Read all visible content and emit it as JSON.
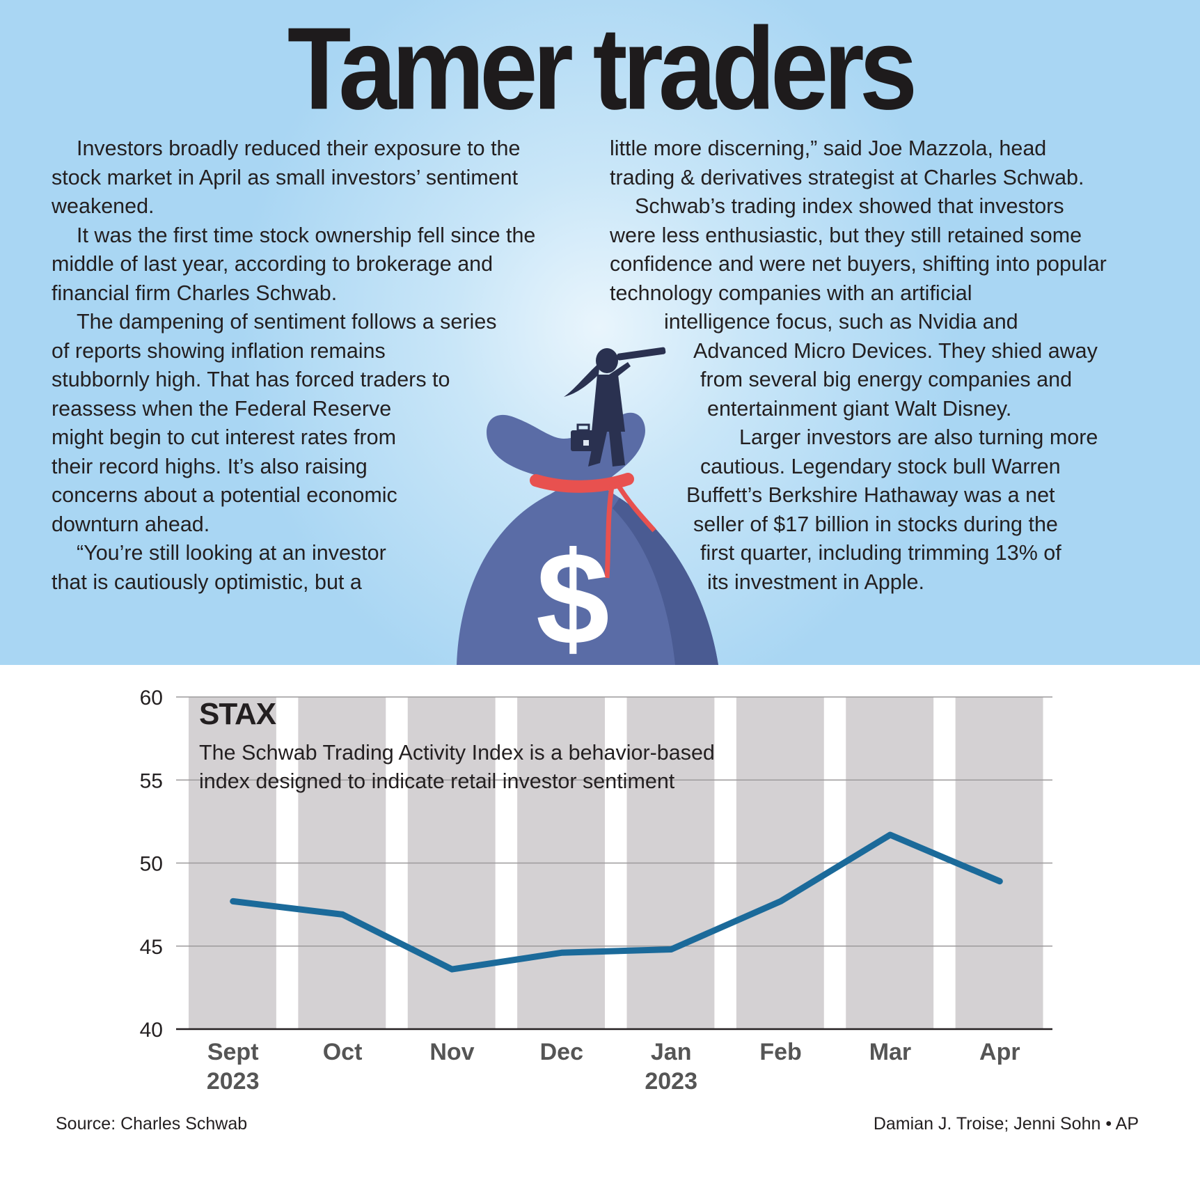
{
  "title": "Tamer traders",
  "article": {
    "left": [
      {
        "indent": true,
        "lines": [
          "Investors broadly reduced their exposure to the",
          "stock market in April as small investors’ sentiment",
          "weakened."
        ]
      },
      {
        "indent": true,
        "lines": [
          "It was the first time stock ownership fell since the",
          "middle of last year, according to brokerage and",
          "financial firm Charles Schwab."
        ]
      },
      {
        "indent": true,
        "lines": [
          "The dampening of sentiment follows a series",
          "of reports showing inflation remains",
          "stubbornly high. That has forced traders to",
          "reassess when the Federal Reserve",
          "might begin to cut interest rates from",
          "their record highs. It’s also raising",
          "concerns about a potential economic",
          "downturn ahead."
        ]
      },
      {
        "indent": true,
        "lines": [
          "“You’re still looking at an investor",
          "that is cautiously optimistic, but a"
        ]
      }
    ],
    "right": [
      {
        "indent": false,
        "lines": [
          "little more discerning,” said Joe Mazzola, head",
          "trading & derivatives strategist at Charles Schwab."
        ]
      },
      {
        "indent": true,
        "lines": [
          "Schwab’s trading index showed that investors",
          "were less enthusiastic, but they still retained some",
          "confidence and were net buyers, shifting into popular",
          "technology companies with an artificial",
          "intelligence focus, such as Nvidia and",
          "Advanced Micro Devices. They shied away",
          "from several big energy companies and",
          "entertainment giant Walt Disney."
        ]
      },
      {
        "indent": true,
        "lines": [
          "Larger investors are also turning more",
          "cautious. Legendary stock bull Warren",
          "Buffett’s Berkshire Hathaway was a net",
          "seller of $17 billion in stocks during the",
          "first quarter, including trimming 13% of",
          "its investment in Apple."
        ]
      }
    ]
  },
  "illustration": {
    "bag_symbol": "$",
    "bag_color": "#5a6ca6",
    "tie_color": "#e8514f"
  },
  "chart_data": {
    "type": "line",
    "title": "STAX",
    "subtitle": [
      "The Schwab Trading Activity Index is a behavior-based",
      "index designed to indicate retail investor sentiment"
    ],
    "categories": [
      [
        "Sept",
        "2023"
      ],
      [
        "Oct"
      ],
      [
        "Nov"
      ],
      [
        "Dec"
      ],
      [
        "Jan",
        "2023"
      ],
      [
        "Feb"
      ],
      [
        "Mar"
      ],
      [
        "Apr"
      ]
    ],
    "values": [
      47.7,
      46.9,
      43.6,
      44.6,
      44.8,
      47.7,
      51.7,
      48.9
    ],
    "ylim": [
      40,
      60
    ],
    "yticks": [
      40,
      45,
      50,
      55,
      60
    ],
    "grid": true,
    "line_color": "#1b6a9a",
    "band_color": "#d4d1d3"
  },
  "footer": {
    "source": "Source: Charles Schwab",
    "credit": "Damian J. Troise; Jenni Sohn • AP"
  }
}
